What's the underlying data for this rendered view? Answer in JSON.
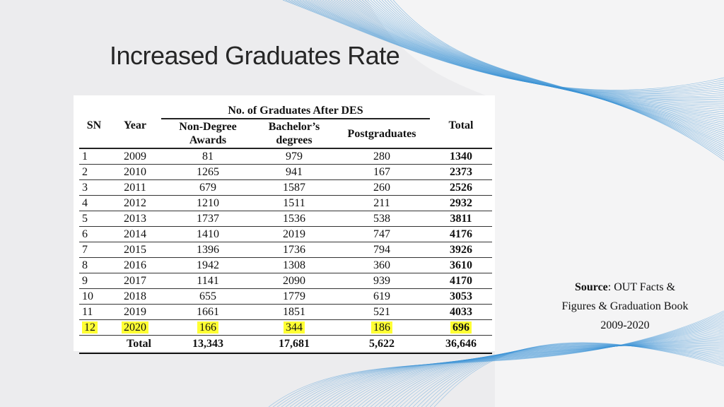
{
  "title": "Increased Graduates Rate",
  "table": {
    "group_header": "No. of Graduates After DES",
    "columns": [
      "SN",
      "Year",
      "Non-Degree Awards",
      "Bachelor’s degrees",
      "Postgraduates",
      "Total"
    ],
    "rows": [
      [
        1,
        2009,
        81,
        979,
        280,
        1340
      ],
      [
        2,
        2010,
        1265,
        941,
        167,
        2373
      ],
      [
        3,
        2011,
        679,
        1587,
        260,
        2526
      ],
      [
        4,
        2012,
        1210,
        1511,
        211,
        2932
      ],
      [
        5,
        2013,
        1737,
        1536,
        538,
        3811
      ],
      [
        6,
        2014,
        1410,
        2019,
        747,
        4176
      ],
      [
        7,
        2015,
        1396,
        1736,
        794,
        3926
      ],
      [
        8,
        2016,
        1942,
        1308,
        360,
        3610
      ],
      [
        9,
        2017,
        1141,
        2090,
        939,
        4170
      ],
      [
        10,
        2018,
        655,
        1779,
        619,
        3053
      ],
      [
        11,
        2019,
        1661,
        1851,
        521,
        4033
      ],
      [
        12,
        2020,
        166,
        344,
        186,
        696
      ]
    ],
    "total_row": [
      "Total",
      "13,343",
      "17,681",
      "5,622",
      "36,646"
    ]
  },
  "source": {
    "label": "Source",
    "text": ": OUT Facts & Figures & Graduation Book 2009-2020"
  }
}
